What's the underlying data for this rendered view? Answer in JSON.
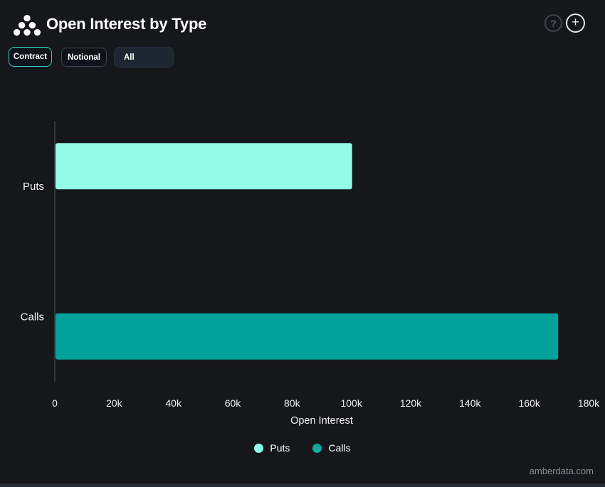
{
  "header": {
    "title": "Open Interest by Type",
    "help_icon": "?",
    "add_icon": "+"
  },
  "toolbar": {
    "buttons": [
      {
        "label": "Contract",
        "active": true
      },
      {
        "label": "Notional",
        "active": false
      }
    ],
    "dropdown": {
      "value": "All"
    }
  },
  "chart_data": {
    "type": "bar",
    "orientation": "horizontal",
    "title": "",
    "xlabel": "Open Interest",
    "ylabel": "",
    "categories": [
      "Puts",
      "Calls"
    ],
    "series": [
      {
        "name": "Puts",
        "color": "#92fce7",
        "values": [
          100000,
          null
        ]
      },
      {
        "name": "Calls",
        "color": "#00a29b",
        "values": [
          null,
          169500
        ]
      }
    ],
    "xlim": [
      0,
      180000
    ],
    "xticks": [
      0,
      20000,
      40000,
      60000,
      80000,
      100000,
      120000,
      140000,
      160000,
      180000
    ],
    "xtick_labels": [
      "0",
      "20k",
      "40k",
      "60k",
      "80k",
      "100k",
      "120k",
      "140k",
      "160k",
      "180k"
    ],
    "grid": false,
    "legend_position": "bottom"
  },
  "legend": [
    {
      "label": "Puts",
      "color": "#92fce7"
    },
    {
      "label": "Calls",
      "color": "#0fab9e"
    }
  ],
  "footer": {
    "watermark": "amberdata.com"
  },
  "colors": {
    "background": "#15171b",
    "accent_teal": "#2ed3bf",
    "axis_line": "#33363c",
    "text_primary": "#f2f2f2",
    "text_muted": "#878d96"
  }
}
